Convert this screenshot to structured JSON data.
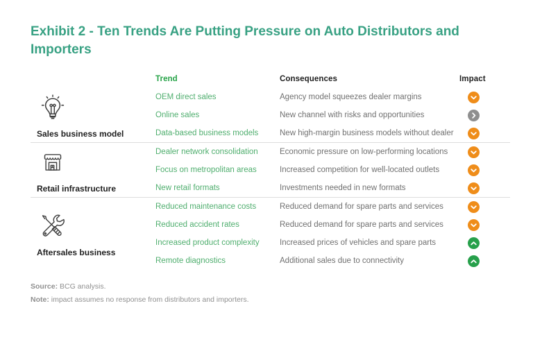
{
  "title": "Exhibit 2 - Ten Trends Are Putting Pressure on Auto Distributors and Importers",
  "colors": {
    "title_teal": "#38A183",
    "trend_header_green": "#27A348",
    "trend_item_green": "#4FAE6E",
    "impact_down_orange": "#EF8D1A",
    "impact_up_green": "#27A04B",
    "impact_neutral_gray": "#8F8F8F",
    "divider": "#DCDCDC",
    "text_dark": "#1F1F1F",
    "text_gray": "#707070",
    "footnote_gray": "#8F8F8F"
  },
  "table": {
    "headers": {
      "trend": "Trend",
      "consequences": "Consequences",
      "impact": "Impact"
    },
    "groups": [
      {
        "category": "Sales business model",
        "icon": "lightbulb-icon",
        "rows": [
          {
            "trend": "OEM direct sales",
            "consequence": "Agency model squeezes dealer margins",
            "impact": "down"
          },
          {
            "trend": "Online sales",
            "consequence": "New channel with risks and opportunities",
            "impact": "neutral"
          },
          {
            "trend": "Data-based business models",
            "consequence": "New high-margin business models without dealer",
            "impact": "down"
          }
        ]
      },
      {
        "category": "Retail infrastructure",
        "icon": "storefront-icon",
        "rows": [
          {
            "trend": "Dealer network consolidation",
            "consequence": "Economic pressure on low-performing locations",
            "impact": "down"
          },
          {
            "trend": "Focus on metropolitan areas",
            "consequence": "Increased competition for well-located outlets",
            "impact": "down"
          },
          {
            "trend": "New retail formats",
            "consequence": "Investments needed in new formats",
            "impact": "down"
          }
        ]
      },
      {
        "category": "Aftersales business",
        "icon": "tools-icon",
        "rows": [
          {
            "trend": "Reduced maintenance costs",
            "consequence": "Reduced demand for spare parts and services",
            "impact": "down"
          },
          {
            "trend": "Reduced accident rates",
            "consequence": "Reduced demand for spare parts and services",
            "impact": "down"
          },
          {
            "trend": "Increased product complexity",
            "consequence": "Increased prices of vehicles and spare parts",
            "impact": "up"
          },
          {
            "trend": "Remote diagnostics",
            "consequence": "Additional sales due to connectivity",
            "impact": "up"
          }
        ]
      }
    ]
  },
  "footer": {
    "source_label": "Source:",
    "source_text": "BCG analysis.",
    "note_label": "Note:",
    "note_text": "impact assumes no response from distributors and importers."
  }
}
